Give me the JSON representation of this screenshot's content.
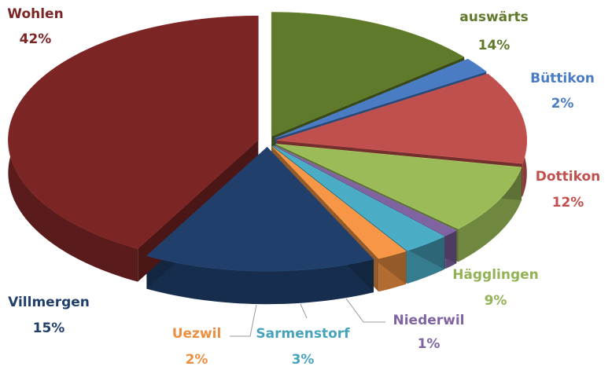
{
  "chart_data": {
    "type": "pie",
    "categories": [
      "auswärts",
      "Büttikon",
      "Dottikon",
      "Hägglingen",
      "Niederwil",
      "Sarmenstorf",
      "Uezwil",
      "Villmergen",
      "Wohlen"
    ],
    "values": [
      14,
      2,
      12,
      9,
      1,
      3,
      2,
      15,
      42
    ],
    "value_labels": [
      "14%",
      "2%",
      "12%",
      "9%",
      "1%",
      "3%",
      "2%",
      "15%",
      "42%"
    ],
    "colors": [
      "#5f7a2b",
      "#4a7cc4",
      "#c0504d",
      "#9bbb59",
      "#8064a2",
      "#4bacc6",
      "#f79646",
      "#203f6b",
      "#7b2525"
    ]
  }
}
